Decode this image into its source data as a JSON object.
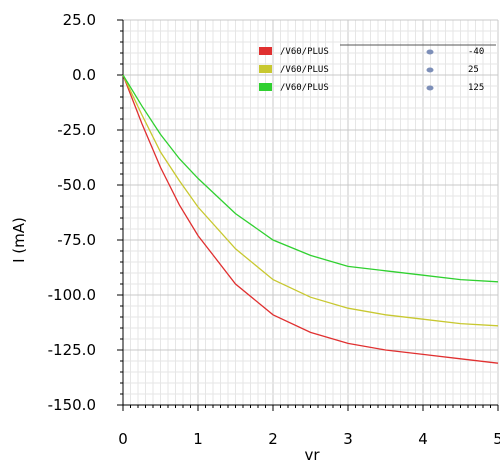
{
  "chart_data": {
    "type": "line",
    "title": "",
    "xlabel": "vr",
    "ylabel": "I (mA)",
    "xlim": [
      0,
      5
    ],
    "ylim": [
      -150,
      25
    ],
    "grid": true,
    "legend_position": "top-right",
    "x_ticks": [
      "0",
      "1",
      "2",
      "3",
      "4",
      "5"
    ],
    "y_ticks": [
      "25.0",
      "0.0",
      "-25.0",
      "-50.0",
      "-75.0",
      "-100.0",
      "-125.0",
      "-150.0"
    ],
    "x": [
      0,
      0.25,
      0.5,
      0.75,
      1.0,
      1.5,
      2.0,
      2.5,
      3.0,
      3.5,
      4.0,
      4.5,
      5.0
    ],
    "series": [
      {
        "name": "/V60/PLUS",
        "param": "-40",
        "color": "#e03030",
        "values": [
          0,
          -22,
          -42,
          -59,
          -73,
          -95,
          -109,
          -117,
          -122,
          -125,
          -127,
          -129,
          -131
        ]
      },
      {
        "name": "/V60/PLUS",
        "param": "25",
        "color": "#c8c830",
        "values": [
          0,
          -18,
          -35,
          -48,
          -60,
          -79,
          -93,
          -101,
          -106,
          -109,
          -111,
          -113,
          -114
        ]
      },
      {
        "name": "/V60/PLUS",
        "param": "125",
        "color": "#30d030",
        "values": [
          0,
          -14,
          -27,
          -38,
          -47,
          -63,
          -75,
          -82,
          -87,
          -89,
          -91,
          -93,
          -94
        ]
      }
    ]
  }
}
